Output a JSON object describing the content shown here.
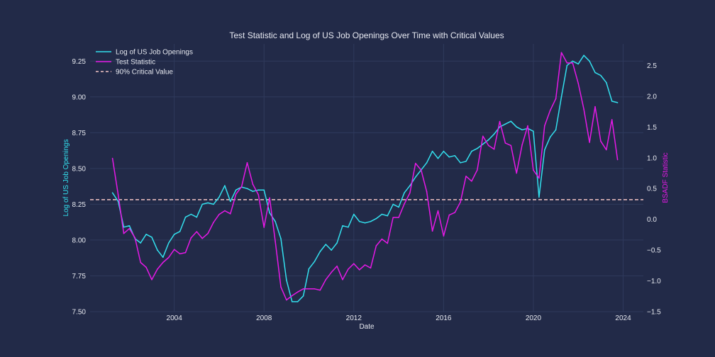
{
  "chart_data": {
    "type": "line",
    "title": "Test Statistic and Log of US Job Openings Over Time with Critical Values",
    "xlabel": "Date",
    "ylabel_left": "Log of US Job Openings",
    "ylabel_right": "BSADF Statistic",
    "xlim": [
      2000.25,
      2024.9
    ],
    "ylim_left": [
      7.5,
      9.37
    ],
    "ylim_right": [
      -1.5,
      2.85
    ],
    "x_ticks": [
      2004,
      2008,
      2012,
      2016,
      2020,
      2024
    ],
    "y_left_ticks": [
      "7.50",
      "7.75",
      "8.00",
      "8.25",
      "8.50",
      "8.75",
      "9.00",
      "9.25"
    ],
    "y_right_ticks": [
      "−1.5",
      "−1.0",
      "−0.5",
      "0.0",
      "0.5",
      "1.0",
      "1.5",
      "2.0",
      "2.5"
    ],
    "y_right_tick_values": [
      -1.5,
      -1.0,
      -0.5,
      0.0,
      0.5,
      1.0,
      1.5,
      2.0,
      2.5
    ],
    "y_left_tick_values": [
      7.5,
      7.75,
      8.0,
      8.25,
      8.5,
      8.75,
      9.0,
      9.25
    ],
    "grid": true,
    "legend_position": "top-left",
    "colors": {
      "job_openings": "#33e0ee",
      "test_statistic": "#e619e6",
      "critical_value": "#f2c4c4",
      "background": "#222a48",
      "grid": "#2f3a5c"
    },
    "series": [
      {
        "name": "Log of US Job Openings",
        "axis": "left",
        "x": [
          2001.25,
          2001.5,
          2001.75,
          2002,
          2002.25,
          2002.5,
          2002.75,
          2003,
          2003.25,
          2003.5,
          2003.75,
          2004,
          2004.25,
          2004.5,
          2004.75,
          2005,
          2005.25,
          2005.5,
          2005.75,
          2006,
          2006.25,
          2006.5,
          2006.75,
          2007,
          2007.25,
          2007.5,
          2007.75,
          2008,
          2008.25,
          2008.5,
          2008.75,
          2009,
          2009.25,
          2009.5,
          2009.75,
          2010,
          2010.25,
          2010.5,
          2010.75,
          2011,
          2011.25,
          2011.5,
          2011.75,
          2012,
          2012.25,
          2012.5,
          2012.75,
          2013,
          2013.25,
          2013.5,
          2013.75,
          2014,
          2014.25,
          2014.5,
          2014.75,
          2015,
          2015.25,
          2015.5,
          2015.75,
          2016,
          2016.25,
          2016.5,
          2016.75,
          2017,
          2017.25,
          2017.5,
          2017.75,
          2018,
          2018.25,
          2018.5,
          2018.75,
          2019,
          2019.25,
          2019.5,
          2019.75,
          2020,
          2020.25,
          2020.5,
          2020.75,
          2021,
          2021.25,
          2021.5,
          2021.75,
          2022,
          2022.25,
          2022.5,
          2022.75,
          2023,
          2023.25,
          2023.5,
          2023.75
        ],
        "values": [
          8.33,
          8.27,
          8.09,
          8.1,
          8.01,
          7.98,
          8.04,
          8.02,
          7.93,
          7.88,
          7.98,
          8.04,
          8.06,
          8.16,
          8.18,
          8.16,
          8.25,
          8.26,
          8.25,
          8.3,
          8.38,
          8.27,
          8.35,
          8.37,
          8.36,
          8.34,
          8.35,
          8.35,
          8.19,
          8.13,
          8.01,
          7.72,
          7.57,
          7.57,
          7.61,
          7.8,
          7.85,
          7.92,
          7.97,
          7.93,
          7.98,
          8.1,
          8.09,
          8.18,
          8.13,
          8.12,
          8.13,
          8.15,
          8.18,
          8.17,
          8.25,
          8.23,
          8.33,
          8.38,
          8.44,
          8.49,
          8.54,
          8.62,
          8.57,
          8.62,
          8.58,
          8.59,
          8.54,
          8.55,
          8.62,
          8.64,
          8.67,
          8.7,
          8.74,
          8.79,
          8.81,
          8.83,
          8.79,
          8.77,
          8.78,
          8.76,
          8.3,
          8.63,
          8.72,
          8.77,
          9.0,
          9.22,
          9.25,
          9.23,
          9.29,
          9.25,
          9.17,
          9.15,
          9.1,
          8.97,
          8.96
        ]
      },
      {
        "name": "Test Statistic",
        "axis": "right",
        "x": [
          2001.25,
          2001.5,
          2001.75,
          2002,
          2002.25,
          2002.5,
          2002.75,
          2003,
          2003.25,
          2003.5,
          2003.75,
          2004,
          2004.25,
          2004.5,
          2004.75,
          2005,
          2005.25,
          2005.5,
          2005.75,
          2006,
          2006.25,
          2006.5,
          2006.75,
          2007,
          2007.25,
          2007.5,
          2007.75,
          2008,
          2008.25,
          2008.5,
          2008.75,
          2009,
          2009.25,
          2009.5,
          2009.75,
          2010,
          2010.25,
          2010.5,
          2010.75,
          2011,
          2011.25,
          2011.5,
          2011.75,
          2012,
          2012.25,
          2012.5,
          2012.75,
          2013,
          2013.25,
          2013.5,
          2013.75,
          2014,
          2014.25,
          2014.5,
          2014.75,
          2015,
          2015.25,
          2015.5,
          2015.75,
          2016,
          2016.25,
          2016.5,
          2016.75,
          2017,
          2017.25,
          2017.5,
          2017.75,
          2018,
          2018.25,
          2018.5,
          2018.75,
          2019,
          2019.25,
          2019.5,
          2019.75,
          2020,
          2020.25,
          2020.5,
          2020.75,
          2021,
          2021.25,
          2021.5,
          2021.75,
          2022,
          2022.25,
          2022.5,
          2022.75,
          2023,
          2023.25,
          2023.5,
          2023.75
        ],
        "values": [
          0.99,
          0.4,
          -0.23,
          -0.15,
          -0.3,
          -0.7,
          -0.78,
          -0.98,
          -0.81,
          -0.7,
          -0.62,
          -0.49,
          -0.56,
          -0.54,
          -0.3,
          -0.2,
          -0.31,
          -0.23,
          -0.05,
          0.08,
          0.14,
          0.09,
          0.41,
          0.53,
          0.92,
          0.57,
          0.4,
          -0.13,
          0.35,
          -0.36,
          -1.1,
          -1.31,
          -1.24,
          -1.18,
          -1.13,
          -1.13,
          -1.13,
          -1.15,
          -0.98,
          -0.86,
          -0.76,
          -0.98,
          -0.81,
          -0.72,
          -0.82,
          -0.74,
          -0.79,
          -0.43,
          -0.32,
          -0.39,
          0.03,
          0.03,
          0.25,
          0.43,
          0.91,
          0.8,
          0.45,
          -0.19,
          0.14,
          -0.27,
          0.07,
          0.11,
          0.28,
          0.7,
          0.62,
          0.8,
          1.35,
          1.2,
          1.14,
          1.59,
          1.24,
          1.2,
          0.75,
          1.21,
          1.52,
          0.8,
          0.67,
          1.52,
          1.77,
          1.96,
          2.71,
          2.54,
          2.54,
          2.21,
          1.79,
          1.25,
          1.83,
          1.27,
          1.13,
          1.62,
          0.97
        ]
      },
      {
        "name": "90% Critical Value",
        "axis": "right",
        "style": "dashed",
        "values": [
          0.32
        ]
      }
    ]
  }
}
